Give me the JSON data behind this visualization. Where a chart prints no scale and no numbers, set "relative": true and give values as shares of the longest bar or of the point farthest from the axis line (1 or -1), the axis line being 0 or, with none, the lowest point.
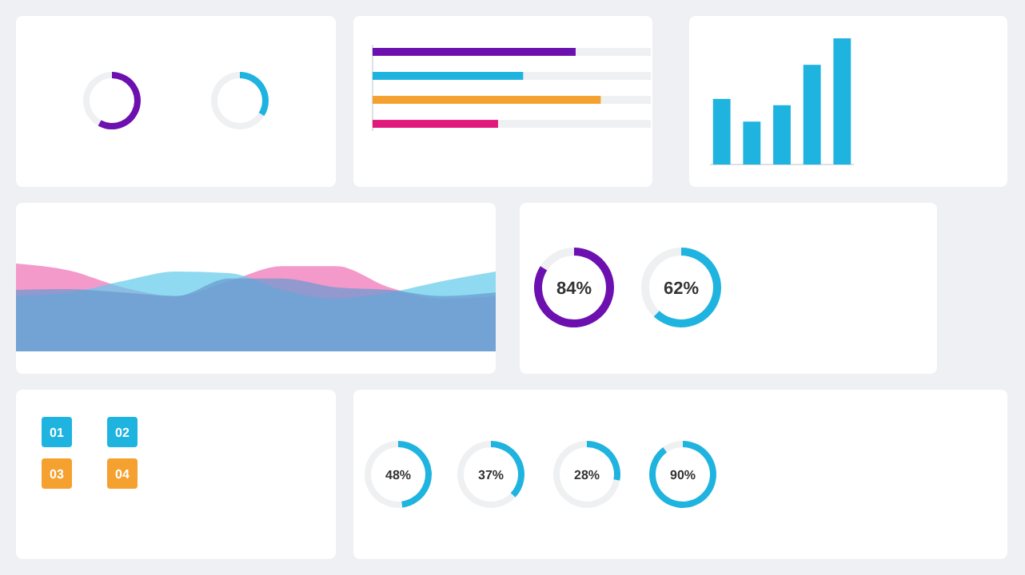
{
  "chart_data": [
    {
      "type": "donut",
      "categories": [
        null,
        null
      ],
      "values": [
        58,
        42
      ],
      "colors": [
        "#6c10b0",
        "#eef0f2"
      ]
    },
    {
      "type": "donut",
      "categories": [
        null,
        null
      ],
      "values": [
        34,
        66
      ],
      "colors": [
        "#1fb3e0",
        "#eef0f2"
      ]
    },
    {
      "type": "bar",
      "orientation": "horizontal",
      "relative": true,
      "categories": [
        null,
        null,
        null,
        null
      ],
      "colors": [
        "#6c10b0",
        "#1fb3e0",
        "#f5a130",
        "#e0197d"
      ],
      "values": [
        0.89,
        0.66,
        1,
        0.55
      ]
    },
    {
      "type": "bar",
      "relative": true,
      "categories": [
        null,
        null,
        null,
        null,
        null
      ],
      "color": "#1fb3e0",
      "values": [
        0.52,
        0.34,
        0.47,
        0.79,
        1
      ]
    },
    {
      "type": "area",
      "relative": true,
      "categories": [
        null,
        null,
        null,
        null,
        null,
        null,
        null,
        null,
        null,
        null
      ],
      "series": [
        {
          "color": "#ee6fb5",
          "values": [
            1,
            0.92,
            0.73,
            0.63,
            0.8,
            0.97,
            0.97,
            0.73,
            0.6,
            0.63
          ]
        },
        {
          "color": "#5fcbea",
          "values": [
            0.63,
            0.67,
            0.8,
            0.91,
            0.89,
            0.7,
            0.6,
            0.67,
            0.8,
            0.91
          ]
        },
        {
          "color": "#6898cf",
          "values": [
            0.7,
            0.71,
            0.67,
            0.63,
            0.83,
            0.83,
            0.73,
            0.7,
            0.63,
            0.67
          ]
        }
      ]
    },
    {
      "type": "donut",
      "categories": [
        null,
        null
      ],
      "values": [
        84,
        16
      ],
      "colors": [
        "#6c10b0",
        "#eef0f2"
      ],
      "annotations": [
        "84%"
      ]
    },
    {
      "type": "donut",
      "categories": [
        null,
        null
      ],
      "values": [
        62,
        38
      ],
      "colors": [
        "#1fb3e0",
        "#eef0f2"
      ],
      "annotations": [
        "62%"
      ]
    },
    {
      "type": "other",
      "annotations": [
        "01",
        "02",
        "03",
        "04"
      ]
    },
    {
      "type": "donut",
      "categories": [
        null,
        null
      ],
      "values": [
        48,
        52
      ],
      "colors": [
        "#1fb3e0",
        "#eef0f2"
      ],
      "annotations": [
        "48%"
      ]
    },
    {
      "type": "donut",
      "categories": [
        null,
        null
      ],
      "values": [
        37,
        63
      ],
      "colors": [
        "#1fb3e0",
        "#eef0f2"
      ],
      "annotations": [
        "37%"
      ]
    },
    {
      "type": "donut",
      "categories": [
        null,
        null
      ],
      "values": [
        28,
        72
      ],
      "colors": [
        "#1fb3e0",
        "#eef0f2"
      ],
      "annotations": [
        "28%"
      ]
    },
    {
      "type": "donut",
      "categories": [
        null,
        null
      ],
      "values": [
        90,
        10
      ],
      "colors": [
        "#1fb3e0",
        "#eef0f2"
      ],
      "annotations": [
        "90%"
      ]
    }
  ]
}
